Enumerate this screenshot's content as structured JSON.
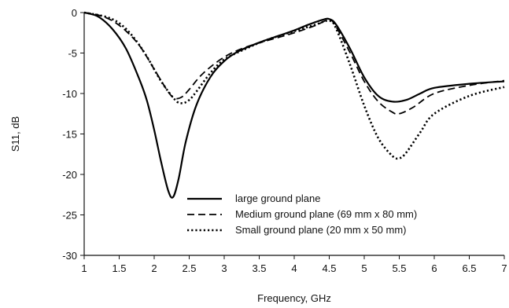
{
  "chart_data": {
    "type": "line",
    "xlabel": "Frequency, GHz",
    "ylabel": "S11, dB",
    "xlim": [
      1,
      7
    ],
    "ylim": [
      -30,
      0
    ],
    "xticks": [
      1,
      1.5,
      2,
      2.5,
      3,
      3.5,
      4,
      4.5,
      5,
      5.5,
      6,
      6.5,
      7
    ],
    "xtick_labels": [
      "1",
      "1.5",
      "2",
      "2.5",
      "3",
      "3.5",
      "4",
      "4.5",
      "5",
      "5.5",
      "6",
      "6.5",
      "7"
    ],
    "yticks": [
      0,
      -5,
      -10,
      -15,
      -20,
      -25,
      -30
    ],
    "ytick_labels": [
      "0",
      "-5",
      "-10",
      "-15",
      "-20",
      "-25",
      "-30"
    ],
    "grid": false,
    "legend_position": "lower-center",
    "series": [
      {
        "name": "large ground plane",
        "style": "solid",
        "color": "#000000",
        "x": [
          1.0,
          1.2,
          1.4,
          1.6,
          1.8,
          1.9,
          2.0,
          2.1,
          2.2,
          2.27,
          2.35,
          2.45,
          2.6,
          2.8,
          3.0,
          3.2,
          3.5,
          3.8,
          4.0,
          4.2,
          4.4,
          4.5,
          4.6,
          4.8,
          5.0,
          5.2,
          5.4,
          5.6,
          5.8,
          6.0,
          6.5,
          7.0
        ],
        "y": [
          0,
          -0.5,
          -2.0,
          -4.5,
          -8.5,
          -11.0,
          -14.5,
          -18.5,
          -22.0,
          -22.8,
          -20.5,
          -16.0,
          -11.5,
          -8.0,
          -6.0,
          -4.8,
          -3.7,
          -2.8,
          -2.2,
          -1.5,
          -0.9,
          -0.8,
          -1.5,
          -4.5,
          -8.0,
          -10.3,
          -11.0,
          -10.8,
          -10.0,
          -9.3,
          -8.8,
          -8.5
        ]
      },
      {
        "name": "Medium ground plane (69 mm x 80 mm)",
        "style": "dashed",
        "color": "#000000",
        "x": [
          1.0,
          1.2,
          1.4,
          1.6,
          1.8,
          2.0,
          2.2,
          2.3,
          2.4,
          2.5,
          2.7,
          3.0,
          3.3,
          3.6,
          4.0,
          4.3,
          4.5,
          4.6,
          4.8,
          5.0,
          5.2,
          5.4,
          5.5,
          5.7,
          6.0,
          6.5,
          7.0
        ],
        "y": [
          0,
          -0.3,
          -1.0,
          -2.3,
          -4.2,
          -7.0,
          -9.8,
          -10.6,
          -10.4,
          -9.5,
          -7.5,
          -5.5,
          -4.3,
          -3.5,
          -2.5,
          -1.6,
          -0.9,
          -1.8,
          -5.0,
          -8.5,
          -11.0,
          -12.3,
          -12.5,
          -11.7,
          -10.0,
          -9.0,
          -8.4
        ]
      },
      {
        "name": "Small ground plane (20 mm x 50 mm)",
        "style": "dotted",
        "color": "#000000",
        "x": [
          1.0,
          1.3,
          1.5,
          1.7,
          1.9,
          2.1,
          2.3,
          2.4,
          2.5,
          2.6,
          2.8,
          3.0,
          3.3,
          3.6,
          4.0,
          4.3,
          4.5,
          4.6,
          4.8,
          5.0,
          5.2,
          5.4,
          5.5,
          5.6,
          5.8,
          6.0,
          6.5,
          7.0
        ],
        "y": [
          0,
          -0.5,
          -1.3,
          -3.0,
          -5.5,
          -8.5,
          -10.8,
          -11.2,
          -10.8,
          -9.8,
          -7.5,
          -5.8,
          -4.5,
          -3.4,
          -2.3,
          -1.5,
          -1.0,
          -2.0,
          -6.5,
          -11.5,
          -15.5,
          -17.7,
          -18.0,
          -17.3,
          -14.8,
          -12.5,
          -10.3,
          -9.2
        ]
      }
    ]
  }
}
